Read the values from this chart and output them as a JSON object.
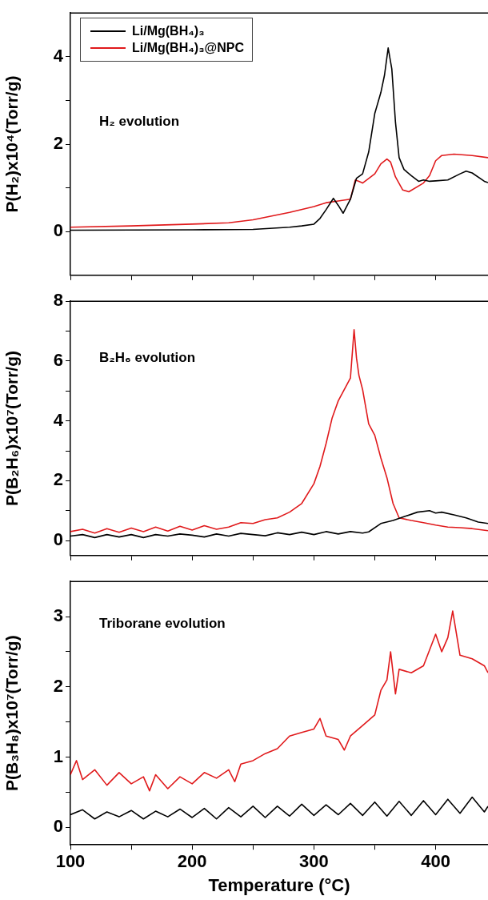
{
  "chart_data": [
    {
      "type": "line",
      "ylabel": "P(H₂)x10⁴(Torr/g)",
      "annotations": [
        "H₂ evolution"
      ],
      "legend": "top left",
      "tick_labels": "y",
      "marker": "none",
      "line_style": "solid",
      "grid": false,
      "xlim": [
        100,
        443
      ],
      "xticks": [
        100,
        {
          "value": 150,
          "label": null
        },
        200,
        {
          "value": 250,
          "label": null
        },
        300,
        {
          "value": 350,
          "label": null
        },
        400
      ],
      "ylim": [
        -1,
        5
      ],
      "yticks": [
        0,
        {
          "value": 1,
          "label": null
        },
        2,
        {
          "value": 3,
          "label": null
        },
        4
      ],
      "series": [
        {
          "name": "Li/Mg(BH₄)₃",
          "color": "#000000",
          "x": [
            100,
            200,
            250,
            280,
            290,
            300,
            305,
            310,
            316,
            320,
            324,
            330,
            335,
            340,
            345,
            350,
            355,
            358,
            361,
            364,
            367,
            370,
            374,
            380,
            386,
            390,
            395,
            400,
            410,
            420,
            425,
            430,
            440,
            443
          ],
          "values": [
            0.03,
            0.04,
            0.05,
            0.1,
            0.13,
            0.17,
            0.3,
            0.5,
            0.76,
            0.6,
            0.42,
            0.74,
            1.22,
            1.32,
            1.82,
            2.7,
            3.18,
            3.58,
            4.2,
            3.72,
            2.5,
            1.69,
            1.42,
            1.28,
            1.15,
            1.18,
            1.15,
            1.16,
            1.18,
            1.32,
            1.38,
            1.34,
            1.15,
            1.12
          ]
        },
        {
          "name": "Li/Mg(BH₄)₃@NPC",
          "color": "#e0191b",
          "x": [
            100,
            150,
            200,
            230,
            250,
            280,
            300,
            310,
            320,
            330,
            334,
            337,
            340,
            350,
            355,
            360,
            363,
            367,
            373,
            378,
            390,
            395,
            400,
            405,
            415,
            430,
            443
          ],
          "values": [
            0.1,
            0.13,
            0.17,
            0.2,
            0.27,
            0.44,
            0.57,
            0.66,
            0.7,
            0.74,
            1.18,
            1.15,
            1.11,
            1.32,
            1.55,
            1.66,
            1.59,
            1.25,
            0.95,
            0.91,
            1.11,
            1.28,
            1.62,
            1.74,
            1.77,
            1.74,
            1.69
          ]
        }
      ]
    },
    {
      "type": "line",
      "ylabel": "P(B₂H₆)x10⁷(Torr/g)",
      "annotations": [
        "B₂H₆ evolution"
      ],
      "tick_labels": "y",
      "marker": "none",
      "line_style": "solid",
      "grid": false,
      "xlim": [
        100,
        443
      ],
      "xticks": [
        100,
        {
          "value": 150,
          "label": null
        },
        200,
        {
          "value": 250,
          "label": null
        },
        300,
        {
          "value": 350,
          "label": null
        },
        400
      ],
      "ylim": [
        -0.5,
        8
      ],
      "yticks": [
        0,
        {
          "value": 1,
          "label": null
        },
        2,
        {
          "value": 3,
          "label": null
        },
        4,
        {
          "value": 5,
          "label": null
        },
        6,
        {
          "value": 7,
          "label": null
        },
        8
      ],
      "series": [
        {
          "color": "#000000",
          "x": [
            100,
            110,
            120,
            130,
            140,
            150,
            160,
            170,
            180,
            190,
            200,
            210,
            220,
            230,
            240,
            250,
            260,
            270,
            280,
            290,
            300,
            310,
            320,
            330,
            340,
            345,
            355,
            365,
            375,
            385,
            395,
            400,
            405,
            415,
            425,
            435,
            443
          ],
          "values": [
            0.15,
            0.2,
            0.1,
            0.2,
            0.12,
            0.2,
            0.1,
            0.2,
            0.15,
            0.22,
            0.18,
            0.12,
            0.22,
            0.15,
            0.24,
            0.2,
            0.16,
            0.26,
            0.2,
            0.28,
            0.2,
            0.3,
            0.22,
            0.3,
            0.25,
            0.29,
            0.57,
            0.67,
            0.81,
            0.95,
            1.0,
            0.92,
            0.95,
            0.86,
            0.76,
            0.62,
            0.57
          ]
        },
        {
          "color": "#e0191b",
          "x": [
            100,
            110,
            120,
            130,
            140,
            150,
            160,
            170,
            180,
            190,
            200,
            210,
            220,
            230,
            240,
            250,
            260,
            270,
            280,
            290,
            300,
            305,
            310,
            315,
            320,
            325,
            330,
            333,
            335,
            337,
            340,
            345,
            350,
            355,
            360,
            365,
            370,
            380,
            390,
            400,
            410,
            420,
            430,
            443
          ],
          "values": [
            0.3,
            0.38,
            0.25,
            0.4,
            0.28,
            0.42,
            0.3,
            0.45,
            0.32,
            0.48,
            0.35,
            0.5,
            0.38,
            0.45,
            0.6,
            0.57,
            0.7,
            0.76,
            0.95,
            1.24,
            1.9,
            2.48,
            3.24,
            4.1,
            4.67,
            5.05,
            5.43,
            7.05,
            6.1,
            5.52,
            5.05,
            3.9,
            3.52,
            2.76,
            2.1,
            1.24,
            0.76,
            0.67,
            0.6,
            0.52,
            0.45,
            0.43,
            0.4,
            0.33
          ]
        }
      ]
    },
    {
      "type": "line",
      "xlabel": "Temperature (°C)",
      "ylabel": "P(B₃H₈)x10⁷(Torr/g)",
      "annotations": [
        "Triborane evolution"
      ],
      "marker": "none",
      "line_style": "solid",
      "grid": false,
      "xlim": [
        100,
        443
      ],
      "xticks": [
        100,
        {
          "value": 150,
          "label": null
        },
        200,
        {
          "value": 250,
          "label": null
        },
        300,
        {
          "value": 350,
          "label": null
        },
        400
      ],
      "ylim": [
        -0.25,
        3.5
      ],
      "yticks": [
        0,
        {
          "value": 0.5,
          "label": null
        },
        1,
        {
          "value": 1.5,
          "label": null
        },
        2,
        {
          "value": 2.5,
          "label": null
        },
        3
      ],
      "series": [
        {
          "color": "#000000",
          "x": [
            100,
            110,
            120,
            130,
            140,
            150,
            160,
            170,
            180,
            190,
            200,
            210,
            220,
            230,
            240,
            250,
            260,
            270,
            280,
            290,
            300,
            310,
            320,
            330,
            340,
            350,
            360,
            370,
            380,
            390,
            400,
            410,
            420,
            430,
            440,
            443
          ],
          "values": [
            0.18,
            0.25,
            0.12,
            0.22,
            0.15,
            0.24,
            0.12,
            0.23,
            0.15,
            0.26,
            0.14,
            0.27,
            0.12,
            0.28,
            0.15,
            0.3,
            0.14,
            0.3,
            0.16,
            0.33,
            0.17,
            0.32,
            0.18,
            0.34,
            0.17,
            0.36,
            0.16,
            0.37,
            0.17,
            0.38,
            0.18,
            0.4,
            0.2,
            0.43,
            0.22,
            0.3
          ]
        },
        {
          "color": "#e0191b",
          "x": [
            100,
            105,
            110,
            120,
            130,
            140,
            150,
            160,
            165,
            170,
            180,
            190,
            200,
            210,
            220,
            230,
            235,
            240,
            250,
            260,
            270,
            280,
            290,
            300,
            305,
            310,
            320,
            325,
            330,
            340,
            350,
            355,
            360,
            363,
            367,
            370,
            380,
            390,
            400,
            405,
            410,
            414,
            420,
            430,
            440,
            443
          ],
          "values": [
            0.75,
            0.95,
            0.68,
            0.82,
            0.6,
            0.78,
            0.62,
            0.72,
            0.52,
            0.75,
            0.55,
            0.72,
            0.62,
            0.78,
            0.7,
            0.82,
            0.65,
            0.9,
            0.95,
            1.05,
            1.12,
            1.3,
            1.35,
            1.4,
            1.55,
            1.3,
            1.25,
            1.1,
            1.3,
            1.45,
            1.6,
            1.95,
            2.1,
            2.5,
            1.9,
            2.25,
            2.2,
            2.3,
            2.75,
            2.5,
            2.7,
            3.08,
            2.45,
            2.4,
            2.3,
            2.2
          ]
        }
      ]
    }
  ]
}
